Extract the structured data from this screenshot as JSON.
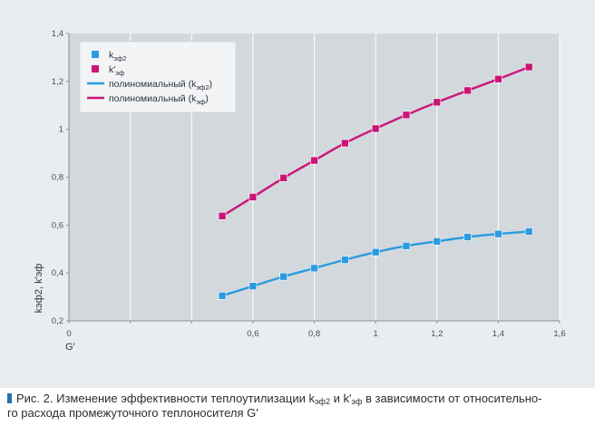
{
  "chart_data": {
    "type": "line",
    "title": "",
    "xlabel": "G′",
    "ylabel": "kэф2, k′эф",
    "xlim": [
      0,
      1.6
    ],
    "ylim": [
      0.2,
      1.4
    ],
    "x_ticks": [
      0,
      0.2,
      0.4,
      0.6,
      0.8,
      1,
      1.2,
      1.4,
      1.6
    ],
    "x_tick_labels": [
      "0",
      "",
      "",
      "0,6",
      "0,8",
      "1",
      "1,2",
      "1,4",
      "1,6"
    ],
    "y_ticks": [
      0.2,
      0.4,
      0.6,
      0.8,
      1.0,
      1.2,
      1.4
    ],
    "y_tick_labels": [
      "0,2",
      "0,4",
      "0,6",
      "0,8",
      "1",
      "1,2",
      "1,4"
    ],
    "grid": "vertical",
    "legend_position": "top-left",
    "series": [
      {
        "name": "kэф2",
        "legend_base": "k",
        "legend_sub": "эф2",
        "color": "#2a9be0",
        "marker": "square",
        "x": [
          0.5,
          0.6,
          0.7,
          0.8,
          0.9,
          1.0,
          1.1,
          1.2,
          1.3,
          1.4,
          1.5
        ],
        "values": [
          0.305,
          0.345,
          0.385,
          0.42,
          0.455,
          0.487,
          0.513,
          0.532,
          0.55,
          0.563,
          0.573
        ]
      },
      {
        "name": "k′эф",
        "legend_base": "k′",
        "legend_sub": "эф",
        "color": "#cc1477",
        "marker": "square",
        "x": [
          0.5,
          0.6,
          0.7,
          0.8,
          0.9,
          1.0,
          1.1,
          1.2,
          1.3,
          1.4,
          1.5
        ],
        "values": [
          0.638,
          0.717,
          0.797,
          0.87,
          0.942,
          1.003,
          1.06,
          1.113,
          1.162,
          1.21,
          1.26
        ]
      }
    ],
    "trendlines": [
      {
        "name": "полиномиальный (kэф2)",
        "label_prefix": "полиномиальный (k",
        "label_sub": "эф2",
        "label_suffix": ")",
        "color": "#2a9be0",
        "of_series": 0
      },
      {
        "name": "полиномиальный (kэф)",
        "label_prefix": "полиномиальный (k",
        "label_sub": "эф",
        "label_suffix": ")",
        "color": "#cc1477",
        "of_series": 1
      }
    ]
  },
  "caption": {
    "text_1": "Рис. 2. Изменение эффективности теплоутилизации k",
    "sub_1": "эф2",
    "text_2": " и k′",
    "sub_2": "эф",
    "text_3": " в зависимости от относительно-",
    "line_2": "го расхода промежуточного теплоносителя G′"
  }
}
